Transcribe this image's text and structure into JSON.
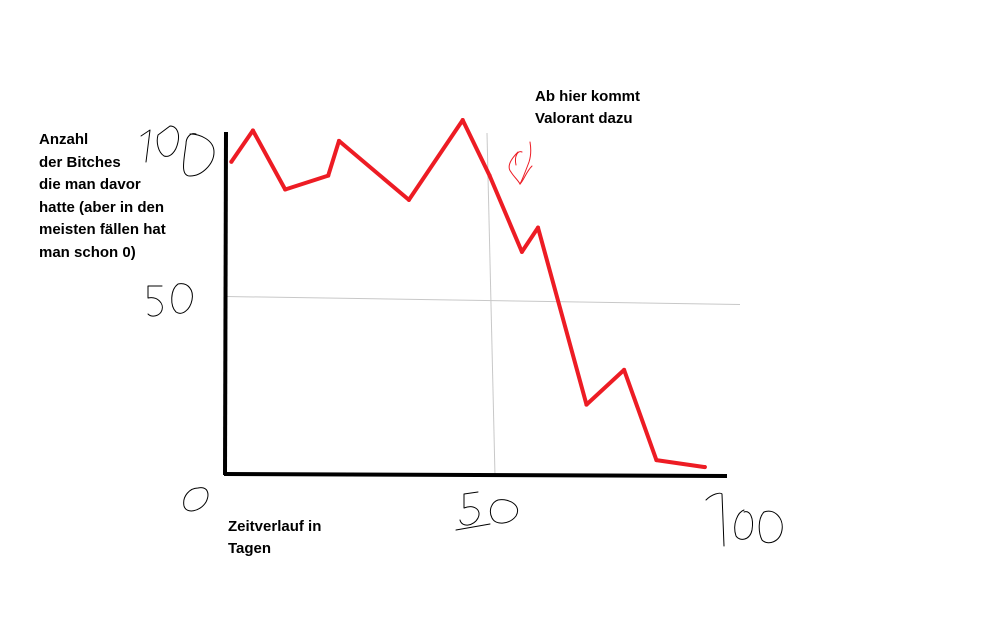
{
  "colors": {
    "line": "#ed1c24",
    "axis": "#000000",
    "grid": "#c8c8c8",
    "annotation": "#ed1c24"
  },
  "chart_data": {
    "type": "line",
    "title": "",
    "ylabel_lines": [
      "Anzahl",
      "der Bitches",
      "die man davor",
      "hatte (aber in den",
      "meisten fällen hat",
      "man schon 0)"
    ],
    "xlabel_lines": [
      "Zeitverlauf in",
      "Tagen"
    ],
    "xticks": [
      "0",
      "50",
      "100"
    ],
    "yticks": [
      "50",
      "100"
    ],
    "xlim": [
      0,
      100
    ],
    "ylim": [
      0,
      100
    ],
    "grid": true,
    "annotation_lines": [
      "Ab hier kommt",
      "Valorant dazu"
    ],
    "annotation_x": 50,
    "series": [
      {
        "x": [
          1,
          5,
          11,
          19,
          21,
          34,
          44,
          49,
          55,
          58,
          67,
          74,
          80,
          89
        ],
        "y": [
          90,
          99,
          82,
          86,
          96,
          79,
          102,
          86,
          64,
          71,
          20,
          30,
          4,
          2
        ]
      }
    ]
  }
}
